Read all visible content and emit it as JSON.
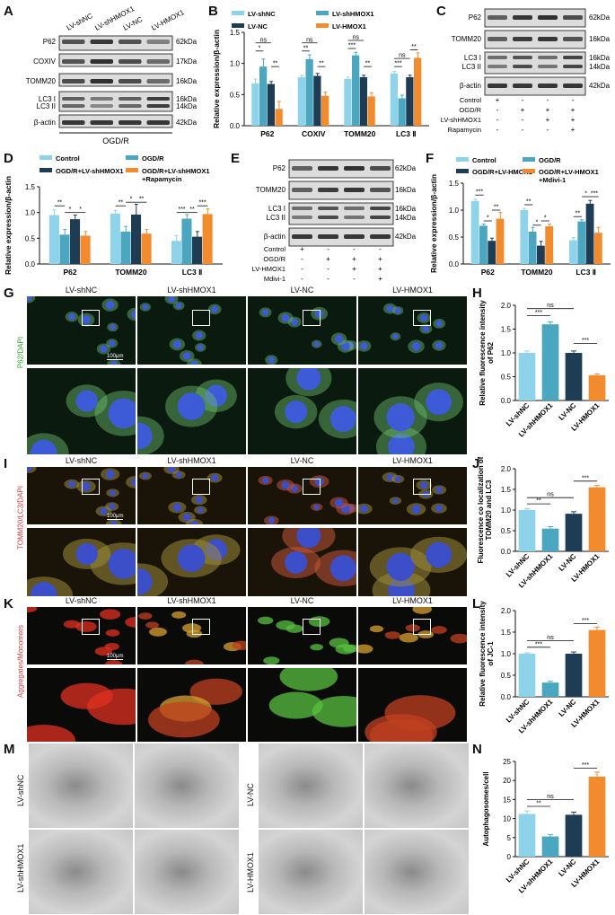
{
  "colors": {
    "control": "#8fd3ea",
    "sh": "#4aa7bf",
    "nc": "#1f3c55",
    "ho": "#f28a2e",
    "blot_bg": "#dcdcdc",
    "band": "#2a2a2a"
  },
  "panels": {
    "A": "A",
    "B": "B",
    "C": "C",
    "D": "D",
    "E": "E",
    "F": "F",
    "G": "G",
    "H": "H",
    "I": "I",
    "J": "J",
    "K": "K",
    "L": "L",
    "M": "M",
    "N": "N"
  },
  "blot_a": {
    "lanes": [
      "LV-shNC",
      "LV-shHMOX1",
      "LV-NC",
      "LV-HMOX1"
    ],
    "rows": [
      "P62",
      "COXIV",
      "TOMM20",
      "LC3 I",
      "LC3 II",
      "β-actin"
    ],
    "kda": [
      "62kDa",
      "17kDa",
      "16kDa",
      "16kDa",
      "14kDa",
      "42kDa"
    ],
    "condition": "OGD/R"
  },
  "blot_c": {
    "rows": [
      "P62",
      "TOMM20",
      "LC3 I",
      "LC3 II",
      "β-actin"
    ],
    "kda": [
      "62kDa",
      "16kDa",
      "16kDa",
      "14kDa",
      "42kDa"
    ],
    "treatments": [
      {
        "label": "Control",
        "signs": [
          "+",
          "-",
          "-",
          "-"
        ]
      },
      {
        "label": "OGD/R",
        "signs": [
          "-",
          "+",
          "+",
          "+"
        ]
      },
      {
        "label": "LV-shHMOX1",
        "signs": [
          "-",
          "-",
          "+",
          "+"
        ]
      },
      {
        "label": "Rapamycin",
        "signs": [
          "-",
          "-",
          "-",
          "+"
        ]
      }
    ]
  },
  "blot_e": {
    "rows": [
      "P62",
      "TOMM20",
      "LC3 I",
      "LC3 II",
      "β-actin"
    ],
    "kda": [
      "62kDa",
      "16kDa",
      "16kDa",
      "14kDa",
      "42kDa"
    ],
    "treatments": [
      {
        "label": "Control",
        "signs": [
          "+",
          "-",
          "-",
          "-"
        ]
      },
      {
        "label": "OGD/R",
        "signs": [
          "-",
          "+",
          "+",
          "+"
        ]
      },
      {
        "label": "LV-HMOX1",
        "signs": [
          "-",
          "-",
          "+",
          "+"
        ]
      },
      {
        "label": "Mdivi-1",
        "signs": [
          "-",
          "-",
          "-",
          "+"
        ]
      }
    ]
  },
  "micro": {
    "G": {
      "cols": [
        "LV-shNC",
        "LV-shHMOX1",
        "LV-NC",
        "LV-HMOX1"
      ],
      "ylab": "P62/DAPI",
      "scale": "100μm"
    },
    "I": {
      "cols": [
        "LV-shNC",
        "LV-shHMOX1",
        "LV-NC",
        "LV-HMOX1"
      ],
      "ylab": "TOMM20/LC3/DAPI",
      "scale": "100μm"
    },
    "K": {
      "cols": [
        "LV-shNC",
        "LV-shHMOX1",
        "LV-NC",
        "LV-HMOX1"
      ],
      "ylab": "Aggregates/Monomers",
      "scale": "100μm"
    },
    "M": {
      "left": [
        "LV-shNC",
        "LV-shHMOX1"
      ],
      "right": [
        "LV-NC",
        "LV-HMOX1"
      ]
    }
  },
  "chart_data": [
    {
      "panel": "B",
      "type": "bar",
      "categories": [
        "P62",
        "COXIV",
        "TOMM20",
        "LC3 Ⅱ"
      ],
      "series": [
        {
          "name": "LV-shNC",
          "color_key": "control",
          "values": [
            0.68,
            0.78,
            0.75,
            0.84
          ],
          "errors": [
            0.07,
            0.03,
            0.03,
            0.03
          ]
        },
        {
          "name": "LV-shHMOX1",
          "color_key": "sh",
          "values": [
            0.95,
            1.07,
            1.13,
            0.44
          ],
          "errors": [
            0.12,
            0.07,
            0.05,
            0.05
          ]
        },
        {
          "name": "LV-NC",
          "color_key": "nc",
          "values": [
            0.67,
            0.8,
            0.78,
            0.78
          ],
          "errors": [
            0.04,
            0.04,
            0.03,
            0.03
          ]
        },
        {
          "name": "LV-HMOX1",
          "color_key": "ho",
          "values": [
            0.27,
            0.48,
            0.47,
            1.09
          ],
          "errors": [
            0.12,
            0.06,
            0.06,
            0.08
          ]
        }
      ],
      "ylabel": "Relative expression/β-actin",
      "ylim": [
        0,
        1.5
      ],
      "yticks": [
        "0.0",
        "0.5",
        "1.0",
        "1.5"
      ],
      "legend": "top",
      "sig": [
        {
          "cat": 0,
          "from": 0,
          "to": 1,
          "label": "*",
          "y": 1.2
        },
        {
          "cat": 0,
          "from": 0,
          "to": 2,
          "label": "ns",
          "y": 1.33
        },
        {
          "cat": 0,
          "from": 2,
          "to": 3,
          "label": "**",
          "y": 0.95
        },
        {
          "cat": 1,
          "from": 0,
          "to": 1,
          "label": "**",
          "y": 1.2
        },
        {
          "cat": 1,
          "from": 0,
          "to": 2,
          "label": "ns",
          "y": 1.33
        },
        {
          "cat": 1,
          "from": 2,
          "to": 3,
          "label": "**",
          "y": 0.95
        },
        {
          "cat": 2,
          "from": 0,
          "to": 1,
          "label": "***",
          "y": 1.24
        },
        {
          "cat": 2,
          "from": 0,
          "to": 2,
          "label": "ns",
          "y": 1.37
        },
        {
          "cat": 2,
          "from": 2,
          "to": 3,
          "label": "**",
          "y": 0.95
        },
        {
          "cat": 3,
          "from": 0,
          "to": 1,
          "label": "***",
          "y": 0.95
        },
        {
          "cat": 3,
          "from": 0,
          "to": 2,
          "label": "ns",
          "y": 1.08
        },
        {
          "cat": 3,
          "from": 2,
          "to": 3,
          "label": "**",
          "y": 1.22
        }
      ]
    },
    {
      "panel": "D",
      "type": "bar",
      "categories": [
        "P62",
        "TOMM20",
        "LC3 Ⅱ"
      ],
      "series": [
        {
          "name": "Control",
          "color_key": "control",
          "values": [
            0.95,
            0.98,
            0.45
          ],
          "errors": [
            0.1,
            0.06,
            0.1
          ]
        },
        {
          "name": "OGD/R",
          "color_key": "sh",
          "values": [
            0.57,
            0.63,
            0.88
          ],
          "errors": [
            0.1,
            0.1,
            0.08
          ]
        },
        {
          "name": "OGD/R+LV-shHMOX1",
          "color_key": "nc",
          "values": [
            0.87,
            0.96,
            0.53
          ],
          "errors": [
            0.08,
            0.2,
            0.1
          ]
        },
        {
          "name": "OGD/R+LV-shHMOX1 +Rapamycin",
          "color_key": "ho",
          "values": [
            0.55,
            0.59,
            0.97
          ],
          "errors": [
            0.08,
            0.08,
            0.1
          ]
        }
      ],
      "ylabel": "Relative expression/β-actin",
      "ylim": [
        0,
        1.5
      ],
      "yticks": [
        "0.0",
        "0.5",
        "1.0",
        "1.5"
      ],
      "legend": "top",
      "sig": [
        {
          "cat": 0,
          "from": 0,
          "to": 1,
          "label": "**",
          "y": 1.13
        },
        {
          "cat": 0,
          "from": 1,
          "to": 2,
          "label": "*",
          "y": 1.0
        },
        {
          "cat": 0,
          "from": 2,
          "to": 3,
          "label": "*",
          "y": 1.0
        },
        {
          "cat": 1,
          "from": 0,
          "to": 1,
          "label": "**",
          "y": 1.13
        },
        {
          "cat": 1,
          "from": 1,
          "to": 2,
          "label": "*",
          "y": 1.2
        },
        {
          "cat": 1,
          "from": 2,
          "to": 3,
          "label": "**",
          "y": 1.2
        },
        {
          "cat": 2,
          "from": 0,
          "to": 1,
          "label": "***",
          "y": 1.0
        },
        {
          "cat": 2,
          "from": 1,
          "to": 2,
          "label": "**",
          "y": 1.0
        },
        {
          "cat": 2,
          "from": 2,
          "to": 3,
          "label": "***",
          "y": 1.13
        }
      ]
    },
    {
      "panel": "F",
      "type": "bar",
      "categories": [
        "P62",
        "TOMM20",
        "LC3 Ⅱ"
      ],
      "series": [
        {
          "name": "Control",
          "color_key": "control",
          "values": [
            1.17,
            1.0,
            0.44
          ],
          "errors": [
            0.03,
            0.03,
            0.05
          ]
        },
        {
          "name": "OGD/R",
          "color_key": "sh",
          "values": [
            0.71,
            0.6,
            0.79
          ],
          "errors": [
            0.03,
            0.08,
            0.03
          ]
        },
        {
          "name": "OGD/R+LV-HMOX1",
          "color_key": "nc",
          "values": [
            0.43,
            0.34,
            1.12
          ],
          "errors": [
            0.05,
            0.08,
            0.06
          ]
        },
        {
          "name": "OGD/R+LV-HMOX1 +Mdivi-1",
          "color_key": "ho",
          "values": [
            0.84,
            0.7,
            0.58
          ],
          "errors": [
            0.12,
            0.04,
            0.1
          ]
        }
      ],
      "ylabel": "Relative expression/β-actin",
      "ylim": [
        0,
        1.5
      ],
      "yticks": [
        "0.0",
        "0.5",
        "1.0",
        "1.5"
      ],
      "legend": "top",
      "sig": [
        {
          "cat": 0,
          "from": 0,
          "to": 1,
          "label": "***",
          "y": 1.28
        },
        {
          "cat": 0,
          "from": 1,
          "to": 2,
          "label": "*",
          "y": 0.8
        },
        {
          "cat": 0,
          "from": 2,
          "to": 3,
          "label": "**",
          "y": 1.0
        },
        {
          "cat": 1,
          "from": 0,
          "to": 1,
          "label": "**",
          "y": 1.1
        },
        {
          "cat": 1,
          "from": 1,
          "to": 2,
          "label": "*",
          "y": 0.72
        },
        {
          "cat": 1,
          "from": 2,
          "to": 3,
          "label": "*",
          "y": 0.8
        },
        {
          "cat": 2,
          "from": 0,
          "to": 1,
          "label": "**",
          "y": 0.88
        },
        {
          "cat": 2,
          "from": 1,
          "to": 2,
          "label": "*",
          "y": 1.25
        },
        {
          "cat": 2,
          "from": 2,
          "to": 3,
          "label": "***",
          "y": 1.25
        }
      ]
    },
    {
      "panel": "H",
      "type": "bar",
      "categories": [
        "LV-shNC",
        "LV-shHMOX1",
        "LV-NC",
        "LV-HMOX1"
      ],
      "values": [
        1.0,
        1.6,
        1.0,
        0.53
      ],
      "errors": [
        0.04,
        0.05,
        0.04,
        0.03
      ],
      "color_keys": [
        "control",
        "sh",
        "nc",
        "ho"
      ],
      "ylabel": "Relative fluorescence intensity of P62",
      "ylim": [
        0,
        2.0
      ],
      "yticks": [
        "0.0",
        "0.5",
        "1.0",
        "1.5",
        "2.0"
      ],
      "sig": [
        {
          "from": 0,
          "to": 1,
          "label": "***",
          "y": 1.78
        },
        {
          "from": 0,
          "to": 2,
          "label": "ns",
          "y": 1.93
        },
        {
          "from": 2,
          "to": 3,
          "label": "***",
          "y": 1.2
        }
      ]
    },
    {
      "panel": "J",
      "type": "bar",
      "categories": [
        "LV-shNC",
        "LV-shHMOX1",
        "LV-NC",
        "LV-HMOX1"
      ],
      "values": [
        1.0,
        0.55,
        0.91,
        1.55
      ],
      "errors": [
        0.03,
        0.05,
        0.05,
        0.05
      ],
      "color_keys": [
        "control",
        "sh",
        "nc",
        "ho"
      ],
      "ylabel": "Fluorescence co localization of TOMM20 and LC3",
      "ylim": [
        0,
        2.0
      ],
      "yticks": [
        "0.0",
        "0.5",
        "1.0",
        "1.5",
        "2.0"
      ],
      "sig": [
        {
          "from": 0,
          "to": 1,
          "label": "**",
          "y": 1.15
        },
        {
          "from": 0,
          "to": 2,
          "label": "ns",
          "y": 1.3
        },
        {
          "from": 2,
          "to": 3,
          "label": "***",
          "y": 1.7
        }
      ]
    },
    {
      "panel": "L",
      "type": "bar",
      "categories": [
        "LV-shNC",
        "LV-shHMOX1",
        "LV-NC",
        "LV-HMOX1"
      ],
      "values": [
        1.0,
        0.33,
        1.0,
        1.55
      ],
      "errors": [
        0.02,
        0.03,
        0.04,
        0.07
      ],
      "color_keys": [
        "control",
        "sh",
        "nc",
        "ho"
      ],
      "ylabel": "Relative fluorescence intensity of JC-1",
      "ylim": [
        0,
        2.0
      ],
      "yticks": [
        "0.0",
        "0.5",
        "1.0",
        "1.5",
        "2.0"
      ],
      "sig": [
        {
          "from": 0,
          "to": 1,
          "label": "***",
          "y": 1.15
        },
        {
          "from": 0,
          "to": 2,
          "label": "ns",
          "y": 1.3
        },
        {
          "from": 2,
          "to": 3,
          "label": "***",
          "y": 1.7
        }
      ]
    },
    {
      "panel": "N",
      "type": "bar",
      "categories": [
        "LV-shNC",
        "LV-shHMOX1",
        "LV-NC",
        "LV-HMOX1"
      ],
      "values": [
        11.2,
        5.3,
        11.0,
        21.0
      ],
      "errors": [
        0.8,
        0.5,
        0.7,
        1.2
      ],
      "color_keys": [
        "control",
        "sh",
        "nc",
        "ho"
      ],
      "ylabel": "Autophagosomes/cell",
      "ylim": [
        0,
        25
      ],
      "yticks": [
        "0",
        "5",
        "10",
        "15",
        "20",
        "25"
      ],
      "sig": [
        {
          "from": 0,
          "to": 1,
          "label": "**",
          "y": 13.2
        },
        {
          "from": 0,
          "to": 2,
          "label": "ns",
          "y": 15.0
        },
        {
          "from": 2,
          "to": 3,
          "label": "***",
          "y": 23.2
        }
      ]
    }
  ]
}
